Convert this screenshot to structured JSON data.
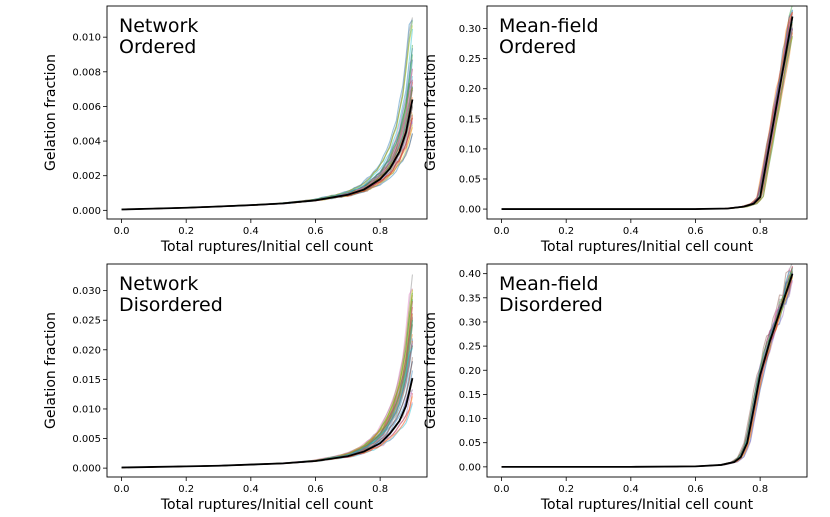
{
  "chart_data": [
    {
      "id": "network-ordered",
      "type": "line",
      "title_lines": [
        "Network",
        "Ordered"
      ],
      "xlabel": "Total ruptures/Initial cell count",
      "ylabel": "Gelation fraction",
      "xlim": [
        -0.045,
        0.945
      ],
      "ylim": [
        -0.0005,
        0.0118
      ],
      "xticks": [
        0.0,
        0.2,
        0.4,
        0.6,
        0.8
      ],
      "xtick_labels": [
        "0.0",
        "0.2",
        "0.4",
        "0.6",
        "0.8"
      ],
      "yticks": [
        0.0,
        0.002,
        0.004,
        0.006,
        0.008,
        0.01
      ],
      "ytick_labels": [
        "0.000",
        "0.002",
        "0.004",
        "0.006",
        "0.008",
        "0.010"
      ],
      "grid": false,
      "series": [
        {
          "name": "mean",
          "x": [
            0.0,
            0.1,
            0.2,
            0.3,
            0.4,
            0.5,
            0.6,
            0.7,
            0.75,
            0.8,
            0.83,
            0.86,
            0.88,
            0.9
          ],
          "y": [
            5e-05,
            0.0001,
            0.00015,
            0.00022,
            0.0003,
            0.0004,
            0.00058,
            0.0009,
            0.0012,
            0.0018,
            0.0024,
            0.0034,
            0.0045,
            0.0064
          ]
        }
      ],
      "ensemble": {
        "count": 40,
        "x_max": 0.9,
        "peak_min": 0.0049,
        "peak_max": 0.0113
      }
    },
    {
      "id": "meanfield-ordered",
      "type": "line",
      "title_lines": [
        "Mean-field",
        "Ordered"
      ],
      "xlabel": "Total ruptures/Initial cell count",
      "ylabel": "Gelation fraction",
      "xlim": [
        -0.045,
        0.945
      ],
      "ylim": [
        -0.0165,
        0.3375
      ],
      "xticks": [
        0.0,
        0.2,
        0.4,
        0.6,
        0.8
      ],
      "xtick_labels": [
        "0.0",
        "0.2",
        "0.4",
        "0.6",
        "0.8"
      ],
      "yticks": [
        0.0,
        0.05,
        0.1,
        0.15,
        0.2,
        0.25,
        0.3
      ],
      "ytick_labels": [
        "0.00",
        "0.05",
        "0.10",
        "0.15",
        "0.20",
        "0.25",
        "0.30"
      ],
      "grid": false,
      "series": [
        {
          "name": "mean",
          "x": [
            0.0,
            0.2,
            0.4,
            0.6,
            0.7,
            0.75,
            0.78,
            0.8,
            0.82,
            0.84,
            0.86,
            0.88,
            0.9
          ],
          "y": [
            0.0,
            0.0,
            0.0,
            0.0,
            0.001,
            0.004,
            0.009,
            0.02,
            0.08,
            0.14,
            0.2,
            0.26,
            0.32
          ]
        }
      ],
      "ensemble": {
        "count": 25,
        "x_max": 0.9,
        "peak_min": 0.31,
        "peak_max": 0.33
      }
    },
    {
      "id": "network-disordered",
      "type": "line",
      "title_lines": [
        "Network",
        "Disordered"
      ],
      "xlabel": "Total ruptures/Initial cell count",
      "ylabel": "Gelation fraction",
      "xlim": [
        -0.045,
        0.945
      ],
      "ylim": [
        -0.0015,
        0.0345
      ],
      "xticks": [
        0.0,
        0.2,
        0.4,
        0.6,
        0.8
      ],
      "xtick_labels": [
        "0.0",
        "0.2",
        "0.4",
        "0.6",
        "0.8"
      ],
      "yticks": [
        0.0,
        0.005,
        0.01,
        0.015,
        0.02,
        0.025,
        0.03
      ],
      "ytick_labels": [
        "0.000",
        "0.005",
        "0.010",
        "0.015",
        "0.020",
        "0.025",
        "0.030"
      ],
      "grid": false,
      "series": [
        {
          "name": "mean",
          "x": [
            0.0,
            0.1,
            0.2,
            0.3,
            0.4,
            0.5,
            0.6,
            0.7,
            0.75,
            0.8,
            0.83,
            0.86,
            0.88,
            0.9
          ],
          "y": [
            0.0001,
            0.0002,
            0.0003,
            0.0004,
            0.0006,
            0.0008,
            0.0012,
            0.002,
            0.0028,
            0.0042,
            0.0058,
            0.008,
            0.0105,
            0.0152
          ]
        }
      ],
      "ensemble": {
        "count": 40,
        "x_max": 0.9,
        "peak_min": 0.011,
        "peak_max": 0.0327
      }
    },
    {
      "id": "meanfield-disordered",
      "type": "line",
      "title_lines": [
        "Mean-field",
        "Disordered"
      ],
      "xlabel": "Total ruptures/Initial cell count",
      "ylabel": "Gelation fraction",
      "xlim": [
        -0.045,
        0.945
      ],
      "ylim": [
        -0.021,
        0.42
      ],
      "xticks": [
        0.0,
        0.2,
        0.4,
        0.6,
        0.8
      ],
      "xtick_labels": [
        "0.0",
        "0.2",
        "0.4",
        "0.6",
        "0.8"
      ],
      "yticks": [
        0.0,
        0.05,
        0.1,
        0.15,
        0.2,
        0.25,
        0.3,
        0.35,
        0.4
      ],
      "ytick_labels": [
        "0.00",
        "0.05",
        "0.10",
        "0.15",
        "0.20",
        "0.25",
        "0.30",
        "0.35",
        "0.40"
      ],
      "grid": false,
      "series": [
        {
          "name": "mean",
          "x": [
            0.0,
            0.2,
            0.4,
            0.6,
            0.68,
            0.72,
            0.74,
            0.76,
            0.78,
            0.8,
            0.83,
            0.86,
            0.9
          ],
          "y": [
            0.0,
            0.0,
            0.0,
            0.001,
            0.004,
            0.01,
            0.02,
            0.05,
            0.12,
            0.19,
            0.26,
            0.32,
            0.4
          ]
        }
      ],
      "ensemble": {
        "count": 25,
        "x_max": 0.9,
        "peak_min": 0.39,
        "peak_max": 0.41
      }
    }
  ],
  "style": {
    "mean_color": "#000000",
    "palette": [
      "#1f77b4",
      "#ff7f0e",
      "#2ca02c",
      "#d62728",
      "#9467bd",
      "#8c564b",
      "#e377c2",
      "#7f7f7f",
      "#bcbd22",
      "#17becf"
    ]
  }
}
